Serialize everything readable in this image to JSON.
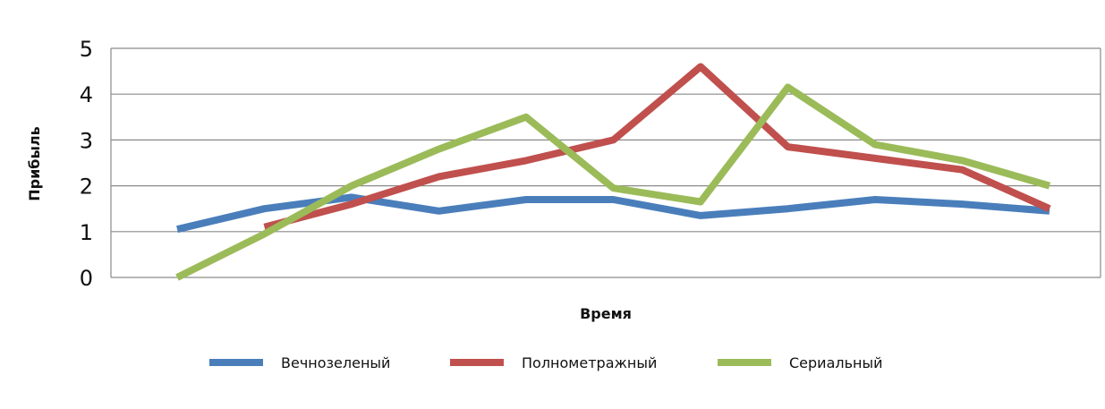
{
  "chart_data": {
    "type": "line",
    "xlabel": "Время",
    "ylabel": "Прибыль",
    "ylim": [
      0,
      5
    ],
    "yticks": [
      0,
      1,
      2,
      3,
      4,
      5
    ],
    "grid": true,
    "legend_position": "bottom",
    "x": [
      1,
      2,
      3,
      4,
      5,
      6,
      7,
      8,
      9,
      10,
      11
    ],
    "series": [
      {
        "name": "Вечнозеленый",
        "color": "#4a7ebb",
        "values": [
          1.05,
          1.5,
          1.75,
          1.45,
          1.7,
          1.7,
          1.35,
          1.5,
          1.7,
          1.6,
          1.45
        ]
      },
      {
        "name": "Полнометражный",
        "color": "#c0504d",
        "values": [
          null,
          1.1,
          1.6,
          2.2,
          2.55,
          3.0,
          4.6,
          2.85,
          2.6,
          2.35,
          1.5
        ]
      },
      {
        "name": "Сериальный",
        "color": "#9bbb59",
        "values": [
          0,
          0.95,
          2.0,
          2.8,
          3.5,
          1.95,
          1.65,
          4.15,
          2.9,
          2.55,
          2.0
        ]
      }
    ]
  }
}
